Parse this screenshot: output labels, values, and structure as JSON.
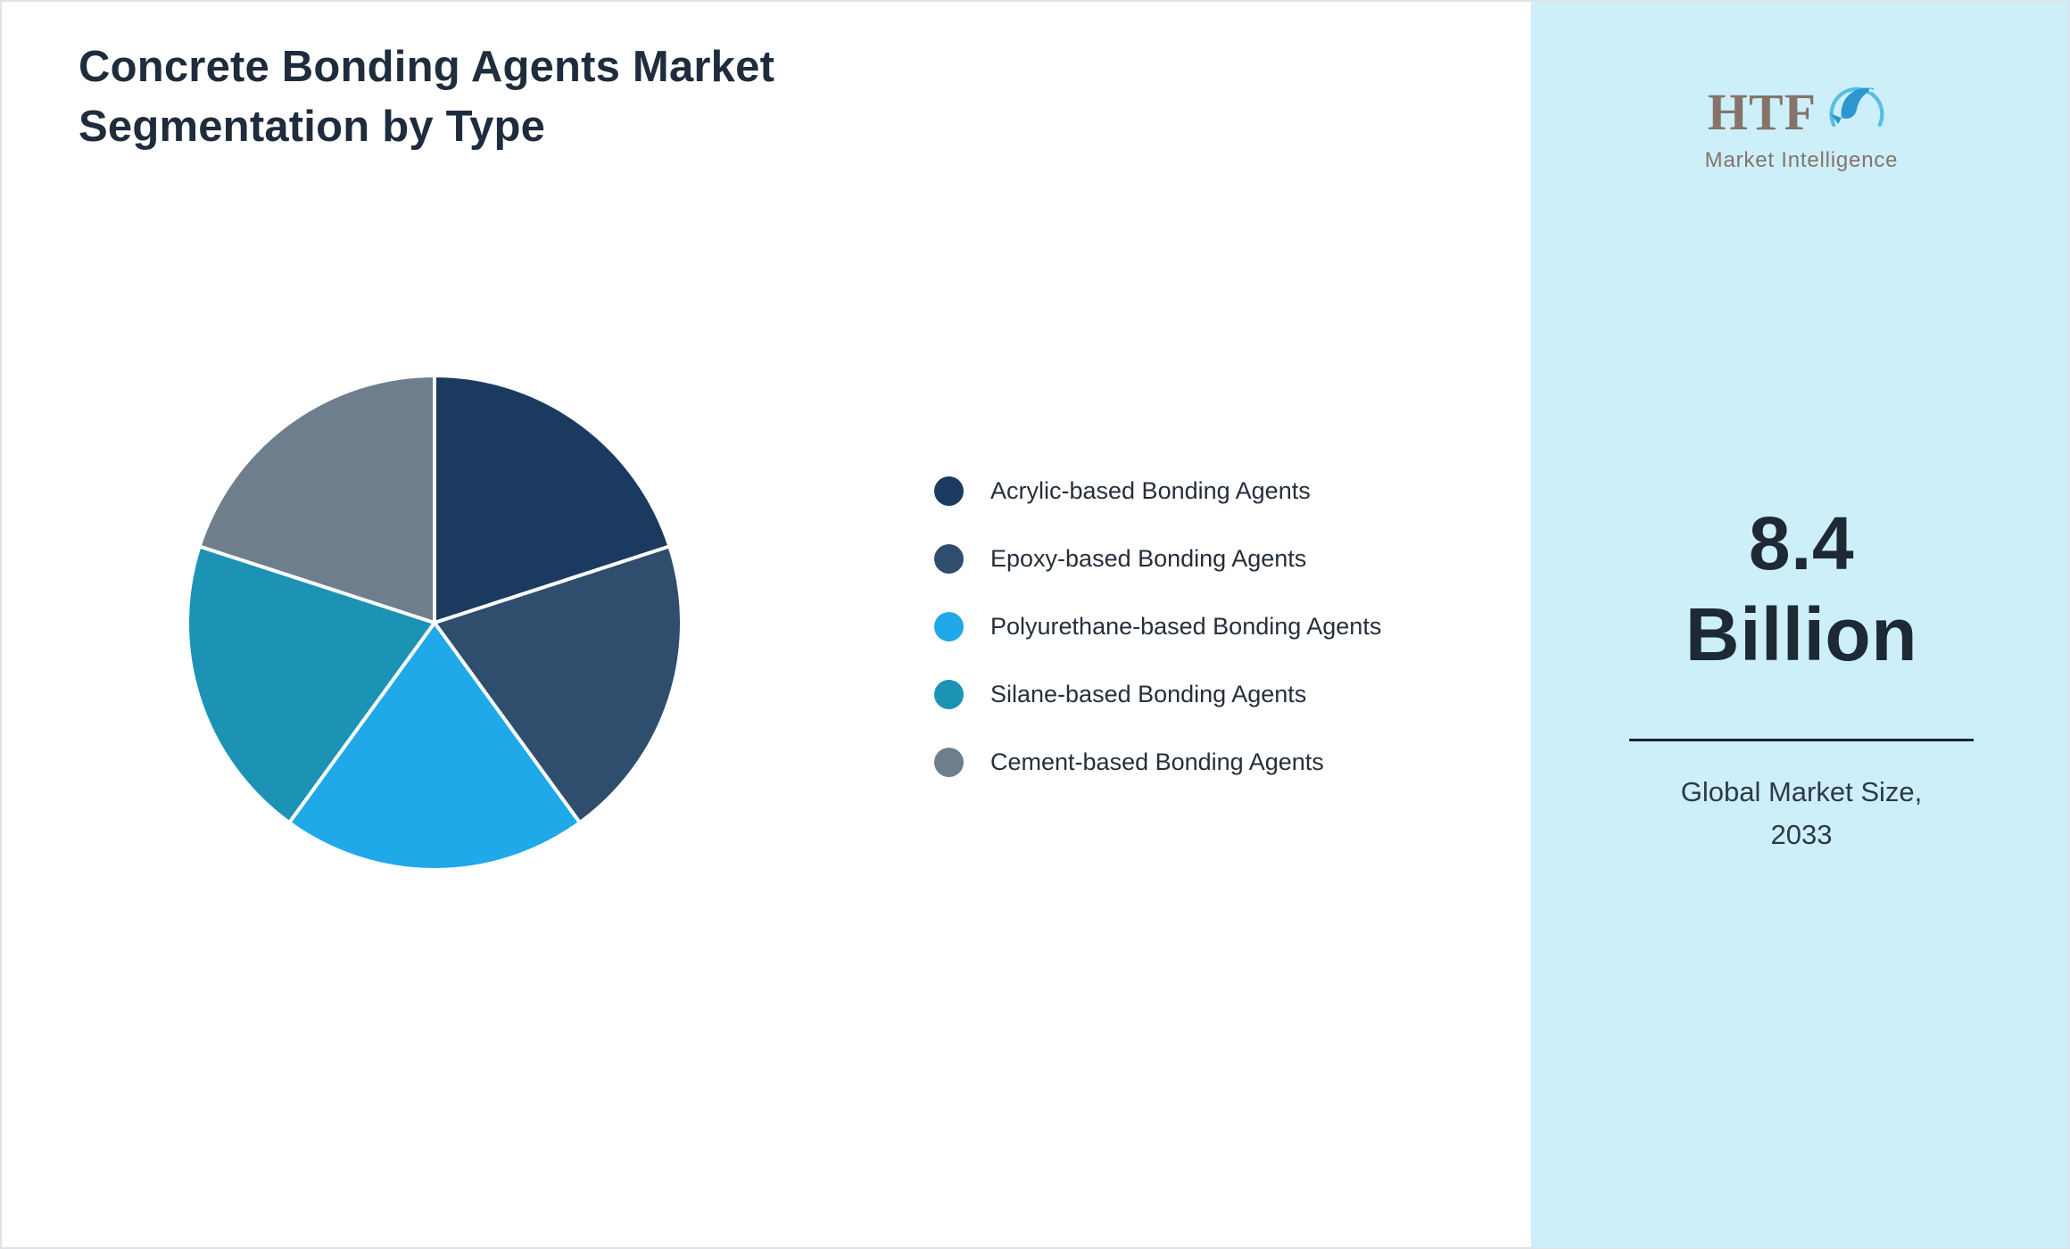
{
  "header": {
    "title_line1": "Concrete Bonding Agents Market",
    "title_line2": "Segmentation by Type"
  },
  "side_panel": {
    "background_color": "#CDEFF9",
    "logo": {
      "brand": "HTF",
      "tagline": "Market Intelligence",
      "dolphin_color": "#2E96CF",
      "splash_color": "#57BFE3",
      "text_color": "#84746A"
    },
    "market_size_value_line1": "8.4",
    "market_size_value_line2": "Billion",
    "caption_line1": "Global Market Size,",
    "caption_line2": "2033"
  },
  "chart_data": {
    "type": "pie",
    "title": "Concrete Bonding Agents Market Segmentation by Type",
    "legend_position": "right",
    "start_angle_deg": 0,
    "direction": "clockwise",
    "value_labels_shown": false,
    "segments": [
      {
        "label": "Acrylic-based Bonding Agents",
        "value": 20,
        "color": "#1B3A5F"
      },
      {
        "label": "Epoxy-based Bonding Agents",
        "value": 20,
        "color": "#2F4D6D"
      },
      {
        "label": "Polyurethane-based Bonding Agents",
        "value": 20,
        "color": "#1FA9E8"
      },
      {
        "label": "Silane-based Bonding Agents",
        "value": 20,
        "color": "#1C93B5"
      },
      {
        "label": "Cement-based Bonding Agents",
        "value": 20,
        "color": "#6E7E8D"
      }
    ]
  }
}
